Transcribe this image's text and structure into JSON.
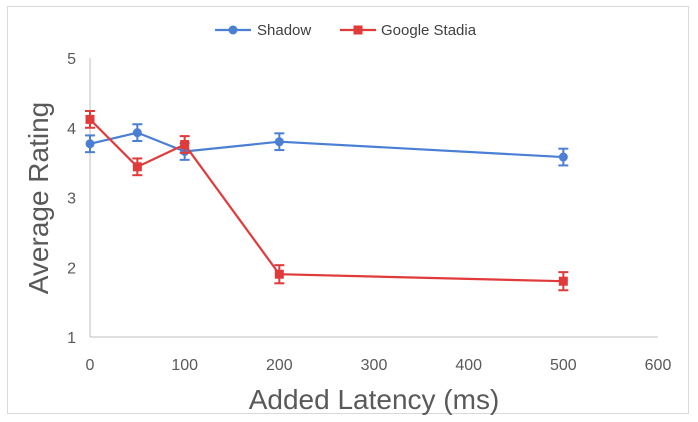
{
  "chart_data": {
    "type": "line",
    "title": "",
    "xlabel": "Added Latency (ms)",
    "ylabel": "Average Rating",
    "xlim": [
      0,
      600
    ],
    "ylim": [
      1,
      5
    ],
    "xticks": [
      "0",
      "100",
      "200",
      "300",
      "400",
      "500",
      "600"
    ],
    "yticks": [
      "1",
      "2",
      "3",
      "4",
      "5"
    ],
    "grid": false,
    "legend_position": "top",
    "series": [
      {
        "name": "Shadow",
        "color": "#4a7fd4",
        "marker": "circle",
        "x": [
          0,
          50,
          100,
          200,
          500
        ],
        "y": [
          3.77,
          3.93,
          3.66,
          3.8,
          3.58
        ],
        "error": [
          0.12,
          0.12,
          0.12,
          0.12,
          0.12
        ]
      },
      {
        "name": "Google Stadia",
        "color": "#e03a3a",
        "marker": "square",
        "x": [
          0,
          50,
          100,
          200,
          500
        ],
        "y": [
          4.12,
          3.44,
          3.76,
          1.9,
          1.8
        ],
        "error": [
          0.12,
          0.12,
          0.12,
          0.13,
          0.13
        ]
      }
    ]
  }
}
